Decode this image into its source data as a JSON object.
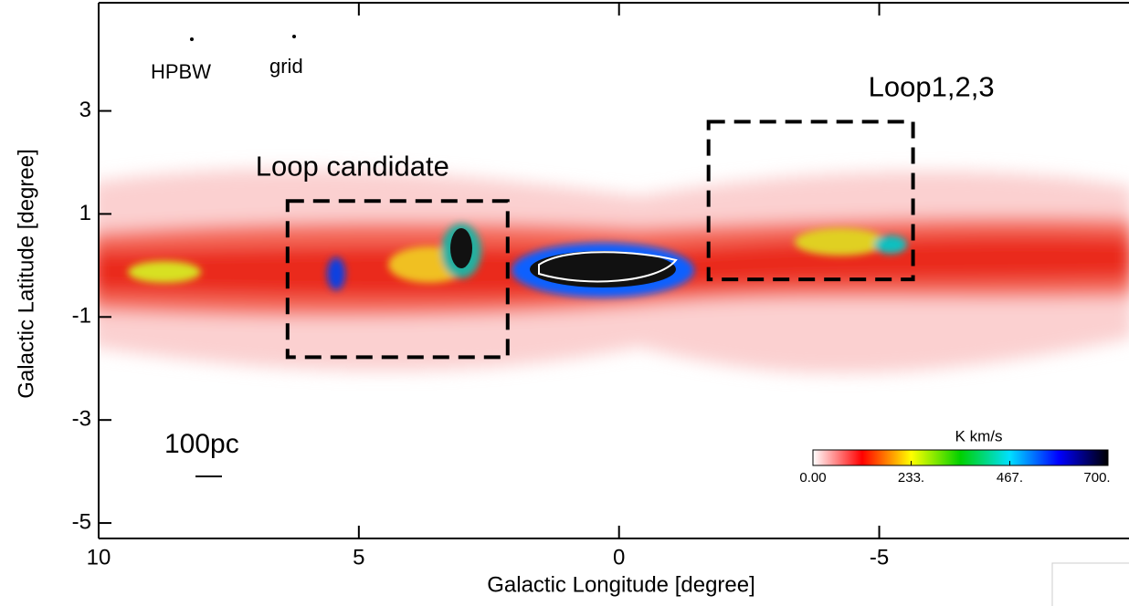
{
  "chart_data": {
    "type": "image",
    "xlabel": "Galactic Longitude [degree]",
    "ylabel": "Galactic Latitude [degree]",
    "xlim": [
      10,
      -9.8
    ],
    "xticks": [
      10,
      5,
      0,
      -5
    ],
    "ylim": [
      5.1,
      -5.3
    ],
    "yticks": [
      3,
      1,
      -1,
      -3,
      -5
    ],
    "annotations": [
      "HPBW",
      "grid",
      "100pc"
    ],
    "regions": [
      {
        "label": "Loop candidate",
        "x": [
          6.37,
          2.14
        ],
        "y": [
          1.25,
          -1.78
        ]
      },
      {
        "label": "Loop1,2,3",
        "x": [
          -1.72,
          -5.65
        ],
        "y": [
          2.79,
          -0.27
        ]
      }
    ],
    "colorbar": {
      "label": "K km/s",
      "lim": [
        0,
        700
      ],
      "colors": [
        "#ffffff",
        "#ff0000",
        "#ffff00",
        "#00d000",
        "#00e0ff",
        "#0000ff",
        "#000000"
      ],
      "ticks": [
        {
          "value": 0,
          "label": "0.00"
        },
        {
          "value": 233,
          "label": "233."
        },
        {
          "value": 467,
          "label": "467."
        },
        {
          "value": 700,
          "label": "700."
        }
      ]
    }
  }
}
